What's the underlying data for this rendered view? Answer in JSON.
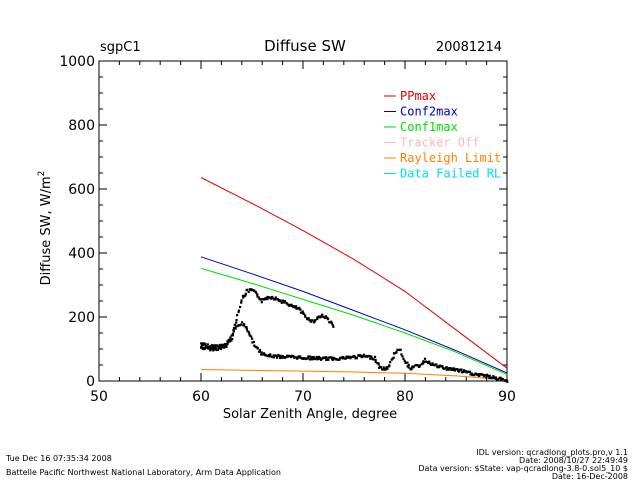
{
  "header": {
    "site": "sgpC1",
    "title": "Diffuse SW",
    "date": "20081214"
  },
  "footer": {
    "timestamp": "Tue Dec 16 07:35:34 2008",
    "org": "Battelle Pacific Northwest National Laboratory, Arm Data Application",
    "idl_version": "IDL version: qcradlong_plots.pro,v 1.1",
    "idl_date": "Date: 2008/10/27 22:49:49",
    "data_version": "Data version: $State: vap-qcradlong-3.8-0.sol5_10 $",
    "data_date": "Date: 16-Dec-2008"
  },
  "chart_data": {
    "type": "scatter",
    "xlabel": "Solar Zenith Angle, degree",
    "ylabel": "Diffuse SW, W/m",
    "ylabel_sup": "2",
    "xlim": [
      50,
      90
    ],
    "ylim": [
      0,
      1000
    ],
    "xticks": [
      50,
      60,
      70,
      80,
      90
    ],
    "yticks": [
      0,
      200,
      400,
      600,
      800,
      1000
    ],
    "grid": false,
    "legend_position": "top-right",
    "legend": [
      {
        "name": "PPmax",
        "color": "#e00000"
      },
      {
        "name": "Conf2max",
        "color": "#0000c0"
      },
      {
        "name": "Conf1max",
        "color": "#00dd00"
      },
      {
        "name": "Tracker Off",
        "color": "#ffb6c1"
      },
      {
        "name": "Rayleigh Limit",
        "color": "#ff8000"
      },
      {
        "name": "Data Failed RL",
        "color": "#00e0e0"
      }
    ],
    "lines": [
      {
        "series": "PPmax",
        "x": [
          60,
          65,
          70,
          75,
          80,
          85,
          90
        ],
        "y": [
          636,
          555,
          470,
          380,
          280,
          160,
          40
        ]
      },
      {
        "series": "Conf2max",
        "x": [
          60,
          65,
          70,
          75,
          80,
          85,
          90
        ],
        "y": [
          388,
          335,
          280,
          220,
          160,
          95,
          25
        ]
      },
      {
        "series": "Conf1max",
        "x": [
          60,
          65,
          70,
          75,
          80,
          85,
          90
        ],
        "y": [
          352,
          305,
          255,
          205,
          150,
          90,
          20
        ]
      },
      {
        "series": "Rayleigh Limit",
        "x": [
          60,
          65,
          70,
          75,
          80,
          85,
          90
        ],
        "y": [
          36,
          33,
          31,
          28,
          24,
          16,
          4
        ]
      }
    ],
    "scatter_upper": {
      "x": [
        60,
        61,
        62,
        62.5,
        63,
        63.5,
        64,
        64.5,
        65,
        65.5,
        66,
        66.5,
        67,
        67.5,
        68,
        68.5,
        69,
        69.5,
        70,
        70.5,
        71,
        71.5,
        72,
        72.5,
        73
      ],
      "y": [
        105,
        100,
        102,
        110,
        135,
        195,
        255,
        280,
        285,
        270,
        250,
        262,
        262,
        255,
        248,
        242,
        232,
        228,
        210,
        195,
        185,
        200,
        205,
        192,
        170
      ]
    },
    "scatter_lower": {
      "x": [
        60,
        61,
        62,
        62.5,
        63,
        63.5,
        64,
        64.5,
        65,
        65.5,
        66,
        66.5,
        67,
        68,
        69,
        70,
        71,
        72,
        73,
        74,
        75,
        76,
        77,
        77.5,
        78,
        78.5,
        79,
        79.5,
        80,
        80.5,
        81,
        81.5,
        82,
        82.5,
        83,
        84,
        85,
        86,
        87,
        88,
        89,
        90
      ],
      "y": [
        115,
        108,
        110,
        118,
        140,
        170,
        180,
        165,
        130,
        100,
        85,
        80,
        78,
        76,
        75,
        73,
        72,
        70,
        70,
        72,
        75,
        78,
        72,
        45,
        35,
        50,
        90,
        100,
        60,
        40,
        45,
        50,
        65,
        55,
        48,
        40,
        35,
        28,
        20,
        15,
        8,
        2
      ]
    }
  }
}
